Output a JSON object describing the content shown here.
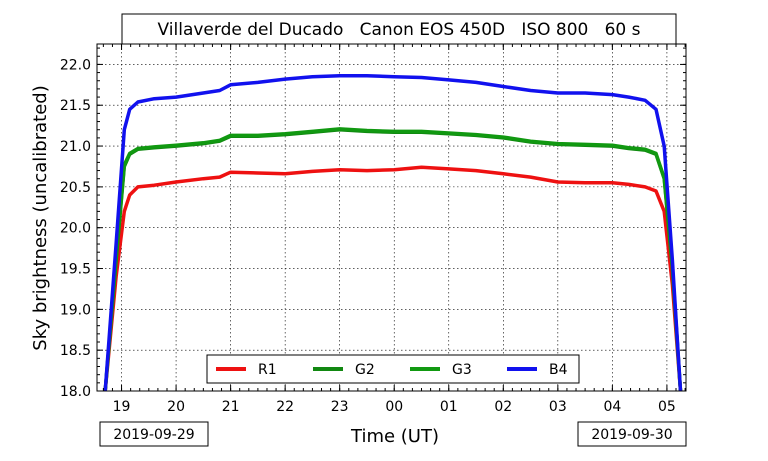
{
  "chart_data": {
    "type": "line",
    "title": "Villaverde del Ducado   Canon EOS 450D   ISO 800   60 s",
    "xlabel": "Time (UT)",
    "ylabel": "Sky brightness (uncalibrated)",
    "ylim": [
      18.0,
      22.25
    ],
    "xlim": [
      18.55,
      29.35
    ],
    "grid": true,
    "legend_position": "bottom-center",
    "y_ticks": [
      "18.0",
      "18.5",
      "19.0",
      "19.5",
      "20.0",
      "20.5",
      "21.0",
      "21.5",
      "22.0"
    ],
    "x_tick_labels": [
      "19",
      "20",
      "21",
      "22",
      "23",
      "00",
      "01",
      "02",
      "03",
      "04",
      "05"
    ],
    "date_labels": [
      "2019-09-29",
      "2019-09-30"
    ],
    "series": [
      {
        "name": "R1",
        "color": "#ee1111",
        "x": [
          18.7,
          18.9,
          19.05,
          19.15,
          19.3,
          19.6,
          20.0,
          20.5,
          20.8,
          21.0,
          21.5,
          22.0,
          22.5,
          23.0,
          23.5,
          24.0,
          24.5,
          25.0,
          25.5,
          26.0,
          26.5,
          27.0,
          27.5,
          28.0,
          28.3,
          28.6,
          28.8,
          28.95,
          29.1,
          29.25
        ],
        "y": [
          18.0,
          19.4,
          20.2,
          20.4,
          20.5,
          20.52,
          20.56,
          20.6,
          20.62,
          20.68,
          20.67,
          20.66,
          20.69,
          20.71,
          20.7,
          20.71,
          20.74,
          20.72,
          20.7,
          20.66,
          20.62,
          20.56,
          20.55,
          20.55,
          20.53,
          20.5,
          20.45,
          20.2,
          19.3,
          18.0
        ]
      },
      {
        "name": "G2",
        "color": "#118811",
        "x": [
          18.7,
          18.9,
          19.05,
          19.15,
          19.3,
          19.6,
          20.0,
          20.5,
          20.8,
          21.0,
          21.5,
          22.0,
          22.5,
          23.0,
          23.5,
          24.0,
          24.5,
          25.0,
          25.5,
          26.0,
          26.5,
          27.0,
          27.5,
          28.0,
          28.3,
          28.6,
          28.8,
          28.95,
          29.1,
          29.25
        ],
        "y": [
          18.0,
          19.6,
          20.75,
          20.9,
          20.96,
          20.98,
          21.0,
          21.03,
          21.06,
          21.12,
          21.12,
          21.14,
          21.17,
          21.2,
          21.18,
          21.17,
          21.17,
          21.15,
          21.13,
          21.1,
          21.05,
          21.02,
          21.01,
          21.0,
          20.97,
          20.95,
          20.9,
          20.6,
          19.5,
          18.0
        ]
      },
      {
        "name": "G3",
        "color": "#119911",
        "x": [
          18.7,
          18.9,
          19.05,
          19.15,
          19.3,
          19.6,
          20.0,
          20.5,
          20.8,
          21.0,
          21.5,
          22.0,
          22.5,
          23.0,
          23.5,
          24.0,
          24.5,
          25.0,
          25.5,
          26.0,
          26.5,
          27.0,
          27.5,
          28.0,
          28.3,
          28.6,
          28.8,
          28.95,
          29.1,
          29.25
        ],
        "y": [
          18.0,
          19.62,
          20.77,
          20.91,
          20.97,
          20.99,
          21.01,
          21.04,
          21.07,
          21.13,
          21.13,
          21.15,
          21.18,
          21.21,
          21.19,
          21.18,
          21.18,
          21.16,
          21.14,
          21.11,
          21.06,
          21.03,
          21.02,
          21.01,
          20.98,
          20.96,
          20.91,
          20.61,
          19.52,
          18.0
        ]
      },
      {
        "name": "B4",
        "color": "#1111ee",
        "x": [
          18.7,
          18.9,
          19.05,
          19.15,
          19.3,
          19.6,
          20.0,
          20.5,
          20.8,
          21.0,
          21.5,
          22.0,
          22.5,
          23.0,
          23.5,
          24.0,
          24.5,
          25.0,
          25.5,
          26.0,
          26.5,
          27.0,
          27.5,
          28.0,
          28.3,
          28.6,
          28.8,
          28.95,
          29.1,
          29.25
        ],
        "y": [
          18.0,
          19.8,
          21.2,
          21.45,
          21.54,
          21.58,
          21.6,
          21.65,
          21.68,
          21.75,
          21.78,
          21.82,
          21.85,
          21.86,
          21.86,
          21.85,
          21.84,
          21.81,
          21.78,
          21.73,
          21.68,
          21.65,
          21.65,
          21.63,
          21.6,
          21.56,
          21.45,
          21.0,
          19.6,
          18.0
        ]
      }
    ]
  }
}
